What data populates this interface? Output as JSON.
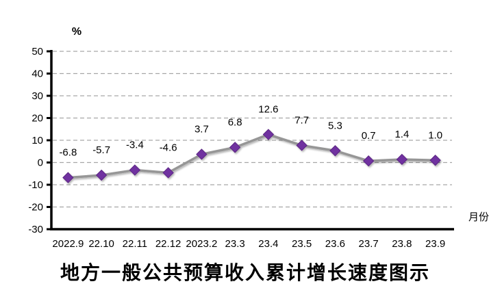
{
  "chart_data": {
    "type": "line",
    "title": "地方一般公共预算收入累计增长速度图示",
    "unit_label": "%",
    "xlabel": "月份",
    "categories": [
      "2022.9",
      "22.10",
      "22.11",
      "22.12",
      "2023.2",
      "23.3",
      "23.4",
      "23.5",
      "23.6",
      "23.7",
      "23.8",
      "23.9"
    ],
    "values": [
      -6.8,
      -5.7,
      -3.4,
      -4.6,
      3.7,
      6.8,
      12.6,
      7.7,
      5.3,
      0.7,
      1.4,
      1.0
    ],
    "data_labels": [
      "-6.8",
      "-5.7",
      "-3.4",
      "-4.6",
      "3.7",
      "6.8",
      "12.6",
      "7.7",
      "5.3",
      "0.7",
      "1.4",
      "1.0"
    ],
    "yticks": [
      50,
      40,
      30,
      20,
      10,
      0,
      -10,
      -20,
      -30
    ],
    "ylim": [
      -30,
      50
    ],
    "grid": "horizontal-dashed",
    "legend": "none",
    "marker": "diamond",
    "colors": {
      "marker_fill": "#7030A0",
      "marker_stroke": "#5B2583",
      "line": "#969696",
      "gridline": "#A6A6A6",
      "axis": "#000000",
      "text": "#000000",
      "background": "#FFFFFF"
    }
  }
}
